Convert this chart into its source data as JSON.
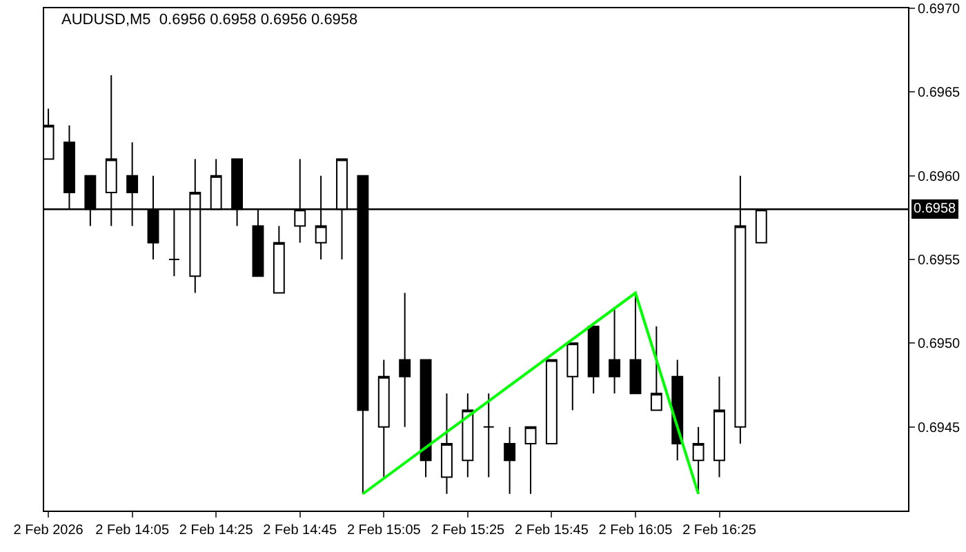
{
  "chart_data": {
    "type": "candlestick",
    "title": "AUDUSD,M5  0.6956 0.6958 0.6956 0.6958",
    "color": "#000000",
    "x": [
      "2026-02-02T13:45",
      "2026-02-02T13:50",
      "2026-02-02T13:55",
      "2026-02-02T14:00",
      "2026-02-02T14:05",
      "2026-02-02T14:10",
      "2026-02-02T14:15",
      "2026-02-02T14:20",
      "2026-02-02T14:25",
      "2026-02-02T14:30",
      "2026-02-02T14:35",
      "2026-02-02T14:40",
      "2026-02-02T14:45",
      "2026-02-02T14:50",
      "2026-02-02T14:55",
      "2026-02-02T15:00",
      "2026-02-02T15:05",
      "2026-02-02T15:10",
      "2026-02-02T15:15",
      "2026-02-02T15:20",
      "2026-02-02T15:25",
      "2026-02-02T15:30",
      "2026-02-02T15:35",
      "2026-02-02T15:40",
      "2026-02-02T15:45",
      "2026-02-02T15:50",
      "2026-02-02T15:55",
      "2026-02-02T16:00",
      "2026-02-02T16:05",
      "2026-02-02T16:10",
      "2026-02-02T16:15",
      "2026-02-02T16:20",
      "2026-02-02T16:25",
      "2026-02-02T16:30",
      "2026-02-02T16:35"
    ],
    "ohlc": [
      [
        0.6961,
        0.6964,
        0.6961,
        0.6963
      ],
      [
        0.6962,
        0.6963,
        0.6958,
        0.6959
      ],
      [
        0.696,
        0.696,
        0.6957,
        0.6958
      ],
      [
        0.6959,
        0.6966,
        0.6957,
        0.6961
      ],
      [
        0.696,
        0.6962,
        0.6957,
        0.6959
      ],
      [
        0.6958,
        0.696,
        0.6955,
        0.6956
      ],
      [
        0.6955,
        0.6958,
        0.6954,
        0.6955
      ],
      [
        0.6954,
        0.6961,
        0.6953,
        0.6959
      ],
      [
        0.6958,
        0.6961,
        0.6958,
        0.696
      ],
      [
        0.6961,
        0.6961,
        0.6957,
        0.6958
      ],
      [
        0.6957,
        0.6958,
        0.6954,
        0.6954
      ],
      [
        0.6953,
        0.6957,
        0.6953,
        0.6956
      ],
      [
        0.6957,
        0.6961,
        0.6956,
        0.6958
      ],
      [
        0.6956,
        0.696,
        0.6955,
        0.6957
      ],
      [
        0.6958,
        0.6961,
        0.6955,
        0.6961
      ],
      [
        0.696,
        0.696,
        0.6941,
        0.6946
      ],
      [
        0.6945,
        0.6949,
        0.6942,
        0.6948
      ],
      [
        0.6949,
        0.6953,
        0.6945,
        0.6948
      ],
      [
        0.6949,
        0.6949,
        0.6942,
        0.6943
      ],
      [
        0.6942,
        0.6947,
        0.6941,
        0.6944
      ],
      [
        0.6943,
        0.6947,
        0.6942,
        0.6946
      ],
      [
        0.6945,
        0.6947,
        0.6942,
        0.6945
      ],
      [
        0.6944,
        0.6945,
        0.6941,
        0.6943
      ],
      [
        0.6944,
        0.6945,
        0.6941,
        0.6945
      ],
      [
        0.6944,
        0.6949,
        0.6944,
        0.6949
      ],
      [
        0.6948,
        0.695,
        0.6946,
        0.695
      ],
      [
        0.6951,
        0.6951,
        0.6947,
        0.6948
      ],
      [
        0.6949,
        0.6952,
        0.6947,
        0.6948
      ],
      [
        0.6949,
        0.6953,
        0.6947,
        0.6947
      ],
      [
        0.6946,
        0.6951,
        0.6946,
        0.6947
      ],
      [
        0.6948,
        0.6949,
        0.6943,
        0.6944
      ],
      [
        0.6943,
        0.6945,
        0.6941,
        0.6944
      ],
      [
        0.6943,
        0.6948,
        0.6942,
        0.6946
      ],
      [
        0.6945,
        0.696,
        0.6944,
        0.6957
      ],
      [
        0.6956,
        0.6958,
        0.6956,
        0.6958
      ]
    ],
    "series": [
      {
        "type": "line",
        "color": "#00ff00",
        "x": [
          "2026-02-02T15:00",
          "2026-02-02T16:05",
          "2026-02-02T16:20"
        ],
        "values": [
          0.6941,
          0.6953,
          0.6941
        ]
      }
    ],
    "xlim": [
      "2026-02-02T13:44",
      "2026-02-02T17:10"
    ],
    "xticks": [
      {
        "value": "2026-02-02T13:45",
        "label": "2 Feb 2026"
      },
      {
        "value": "2026-02-02T14:05",
        "label": "2 Feb 14:05"
      },
      {
        "value": "2026-02-02T14:25",
        "label": "2 Feb 14:25"
      },
      {
        "value": "2026-02-02T14:45",
        "label": "2 Feb 14:45"
      },
      {
        "value": "2026-02-02T15:05",
        "label": "2 Feb 15:05"
      },
      {
        "value": "2026-02-02T15:25",
        "label": "2 Feb 15:25"
      },
      {
        "value": "2026-02-02T15:45",
        "label": "2 Feb 15:45"
      },
      {
        "value": "2026-02-02T16:05",
        "label": "2 Feb 16:05"
      },
      {
        "value": "2026-02-02T16:25",
        "label": "2 Feb 16:25"
      }
    ],
    "ylim": [
      0.694,
      0.697
    ],
    "yticks": [
      {
        "value": 0.6945,
        "label": "0.6945"
      },
      {
        "value": 0.695,
        "label": "0.6950"
      },
      {
        "value": 0.6955,
        "label": "0.6955"
      },
      {
        "value": 0.696,
        "label": "0.6960"
      },
      {
        "value": 0.6965,
        "label": "0.6965"
      },
      {
        "value": 0.697,
        "label": "0.6970"
      }
    ],
    "ref_lines": [
      {
        "axis": "y",
        "value": 0.6958,
        "label": "0.6958",
        "color": "#000000"
      }
    ],
    "grid": false
  }
}
